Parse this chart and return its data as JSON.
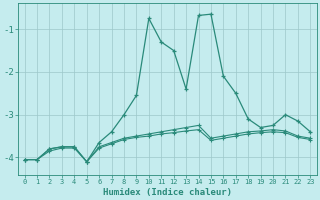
{
  "xlabel": "Humidex (Indice chaleur)",
  "x": [
    0,
    1,
    2,
    3,
    4,
    5,
    6,
    7,
    8,
    9,
    10,
    11,
    12,
    13,
    14,
    15,
    16,
    17,
    18,
    19,
    20,
    21,
    22,
    23
  ],
  "line_main": [
    -4.05,
    -4.05,
    -3.8,
    -3.75,
    -3.75,
    -4.1,
    -3.65,
    -3.4,
    -3.0,
    -2.55,
    -0.75,
    -1.3,
    -1.5,
    -2.4,
    -0.68,
    -0.65,
    -2.1,
    -2.5,
    -3.1,
    -3.3,
    -3.25,
    -3.0,
    -3.15,
    -3.4
  ],
  "line_flat1": [
    -4.05,
    -4.05,
    -3.8,
    -3.75,
    -3.75,
    -4.1,
    -3.75,
    -3.65,
    -3.55,
    -3.5,
    -3.45,
    -3.4,
    -3.35,
    -3.3,
    -3.25,
    -3.55,
    -3.5,
    -3.45,
    -3.4,
    -3.38,
    -3.35,
    -3.38,
    -3.5,
    -3.55
  ],
  "line_flat2": [
    -4.05,
    -4.05,
    -3.85,
    -3.78,
    -3.78,
    -4.1,
    -3.78,
    -3.68,
    -3.58,
    -3.53,
    -3.5,
    -3.45,
    -3.42,
    -3.38,
    -3.35,
    -3.6,
    -3.55,
    -3.5,
    -3.45,
    -3.42,
    -3.4,
    -3.42,
    -3.53,
    -3.58
  ],
  "line_color": "#2a8a7a",
  "bg_color": "#c5ecee",
  "grid_color": "#9dc8ca",
  "ylim": [
    -4.4,
    -0.4
  ],
  "yticks": [
    -4,
    -3,
    -2,
    -1
  ],
  "figsize": [
    3.2,
    2.0
  ],
  "dpi": 100
}
